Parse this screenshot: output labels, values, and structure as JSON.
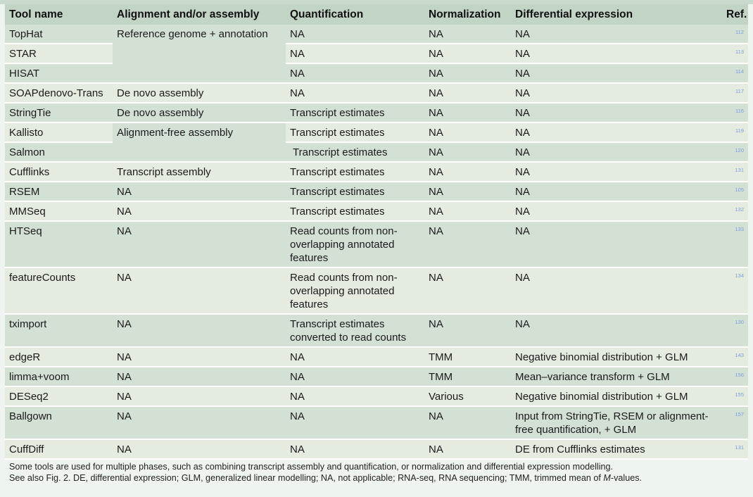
{
  "header": {
    "columns": [
      "Tool name",
      "Alignment and/or assembly",
      "Quantification",
      "Normalization",
      "Differential expression",
      "Ref."
    ]
  },
  "rows": [
    {
      "tool": "TopHat",
      "alignment": "Reference genome + annotation",
      "quant": "NA",
      "norm": "NA",
      "de": "NA",
      "ref": "112"
    },
    {
      "tool": "STAR",
      "alignment": "",
      "quant": "NA",
      "norm": "NA",
      "de": "NA",
      "ref": "113"
    },
    {
      "tool": "HISAT",
      "alignment": "",
      "quant": "NA",
      "norm": "NA",
      "de": "NA",
      "ref": "114"
    },
    {
      "tool": "SOAPdenovo-Trans",
      "alignment": "De novo assembly",
      "quant": "NA",
      "norm": "NA",
      "de": "NA",
      "ref": "117"
    },
    {
      "tool": "StringTie",
      "alignment": "De novo assembly",
      "quant": "Transcript estimates",
      "norm": "NA",
      "de": "NA",
      "ref": "116"
    },
    {
      "tool": "Kallisto",
      "alignment": "Alignment-free assembly",
      "quant": "Transcript estimates",
      "norm": "NA",
      "de": "NA",
      "ref": "119"
    },
    {
      "tool": "Salmon",
      "alignment": "",
      "quant": "Transcript estimates",
      "norm": "NA",
      "de": "NA",
      "ref": "120"
    },
    {
      "tool": "Cufflinks",
      "alignment": "Transcript assembly",
      "quant": "Transcript estimates",
      "norm": "NA",
      "de": "NA",
      "ref": "131"
    },
    {
      "tool": "RSEM",
      "alignment": "NA",
      "quant": "Transcript estimates",
      "norm": "NA",
      "de": "NA",
      "ref": "105"
    },
    {
      "tool": "MMSeq",
      "alignment": "NA",
      "quant": "Transcript estimates",
      "norm": "NA",
      "de": "NA",
      "ref": "132"
    },
    {
      "tool": "HTSeq",
      "alignment": "NA",
      "quant": "Read counts from non-overlapping annotated features",
      "norm": "NA",
      "de": "NA",
      "ref": "133"
    },
    {
      "tool": "featureCounts",
      "alignment": "NA",
      "quant": "Read counts from non-overlapping annotated features",
      "norm": "NA",
      "de": "NA",
      "ref": "134"
    },
    {
      "tool": "tximport",
      "alignment": "NA",
      "quant": "Transcript estimates converted to read counts",
      "norm": "NA",
      "de": "NA",
      "ref": "130"
    },
    {
      "tool": "edgeR",
      "alignment": "NA",
      "quant": "NA",
      "norm": "TMM",
      "de": "Negative binomial distribution + GLM",
      "ref": "143"
    },
    {
      "tool": "limma+voom",
      "alignment": "NA",
      "quant": "NA",
      "norm": "TMM",
      "de": "Mean–variance transform + GLM",
      "ref": "156"
    },
    {
      "tool": "DESeq2",
      "alignment": "NA",
      "quant": "NA",
      "norm": "Various",
      "de": "Negative binomial distribution + GLM",
      "ref": "155"
    },
    {
      "tool": "Ballgown",
      "alignment": "NA",
      "quant": "NA",
      "norm": "NA",
      "de": "Input from StringTie, RSEM or alignment-free quantification, + GLM",
      "ref": "157"
    },
    {
      "tool": "CuffDiff",
      "alignment": "NA",
      "quant": "NA",
      "norm": "NA",
      "de": "DE from Cufflinks estimates",
      "ref": "131"
    }
  ],
  "footnote": {
    "line1": "Some tools are used for multiple phases, such as combining transcript assembly and quantification, or normalization and differential expression modelling.",
    "line2a": "See also Fig. 2. DE, differential expression; GLM, generalized linear modelling; NA, not applicable; RNA-seq, RNA sequencing; TMM, trimmed mean of ",
    "line2b": "M",
    "line2c": "-values."
  }
}
